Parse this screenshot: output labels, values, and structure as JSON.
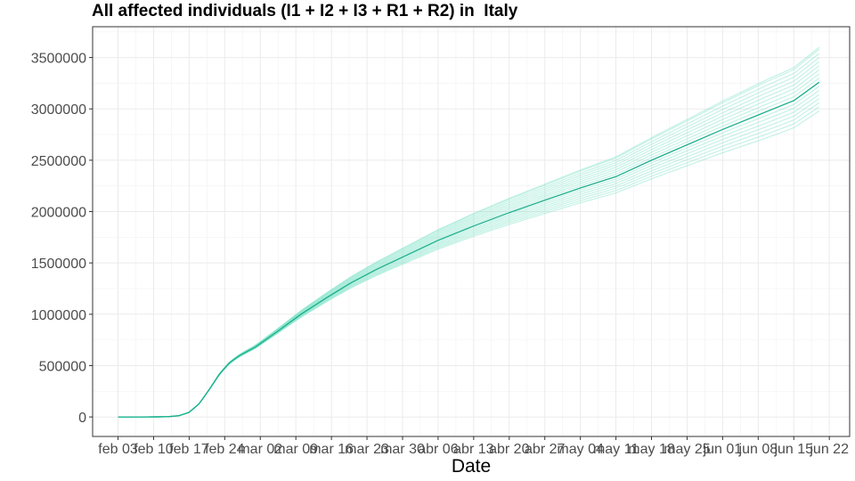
{
  "chart_data": {
    "type": "line",
    "title": "All affected individuals (I1 + I2 + I3 + R1 + R2) in  Italy",
    "xlabel": "Date",
    "ylabel": "",
    "x_tick_labels": [
      "feb 03",
      "feb 10",
      "feb 17",
      "feb 24",
      "mar 02",
      "mar 09",
      "mar 16",
      "mar 23",
      "mar 30",
      "abr 06",
      "abr 13",
      "abr 20",
      "abr 27",
      "may 04",
      "may 11",
      "may 18",
      "may 25",
      "jun 01",
      "jun 08",
      "jun 15",
      "jun 22"
    ],
    "x_tick_dates": [
      "2020-02-03",
      "2020-02-10",
      "2020-02-17",
      "2020-02-24",
      "2020-03-02",
      "2020-03-09",
      "2020-03-16",
      "2020-03-23",
      "2020-03-30",
      "2020-04-06",
      "2020-04-13",
      "2020-04-20",
      "2020-04-27",
      "2020-05-04",
      "2020-05-11",
      "2020-05-18",
      "2020-05-25",
      "2020-06-01",
      "2020-06-08",
      "2020-06-15",
      "2020-06-22"
    ],
    "y_tick_labels": [
      "0",
      "500000",
      "1000000",
      "1500000",
      "2000000",
      "2500000",
      "3000000",
      "3500000"
    ],
    "y_ticks": [
      0,
      500000,
      1000000,
      1500000,
      2000000,
      2500000,
      3000000,
      3500000
    ],
    "xlim": [
      "2020-01-29",
      "2020-06-26"
    ],
    "ylim": [
      -190000,
      3800000
    ],
    "grid": true,
    "main_color": "#1aae8c",
    "ensemble_color": "#7fe3c7",
    "main_series": {
      "x": [
        "2020-02-03",
        "2020-02-07",
        "2020-02-10",
        "2020-02-13",
        "2020-02-15",
        "2020-02-17",
        "2020-02-19",
        "2020-02-21",
        "2020-02-23",
        "2020-02-25",
        "2020-02-27",
        "2020-03-01",
        "2020-03-05",
        "2020-03-10",
        "2020-03-15",
        "2020-03-20",
        "2020-03-25",
        "2020-03-31",
        "2020-04-06",
        "2020-04-13",
        "2020-04-20",
        "2020-04-27",
        "2020-05-04",
        "2020-05-11",
        "2020-05-18",
        "2020-05-25",
        "2020-06-01",
        "2020-06-08",
        "2020-06-15",
        "2020-06-20"
      ],
      "y": [
        0,
        0,
        500,
        3000,
        12000,
        45000,
        130000,
        270000,
        420000,
        530000,
        600000,
        680000,
        820000,
        1000000,
        1160000,
        1310000,
        1440000,
        1580000,
        1720000,
        1860000,
        1990000,
        2110000,
        2230000,
        2340000,
        2500000,
        2650000,
        2800000,
        2940000,
        3080000,
        3260000
      ]
    },
    "ensemble_final_values": [
      2980000,
      3020000,
      3060000,
      3100000,
      3140000,
      3180000,
      3220000,
      3300000,
      3340000,
      3380000,
      3420000,
      3460000,
      3500000,
      3540000,
      3580000,
      3600000
    ]
  }
}
